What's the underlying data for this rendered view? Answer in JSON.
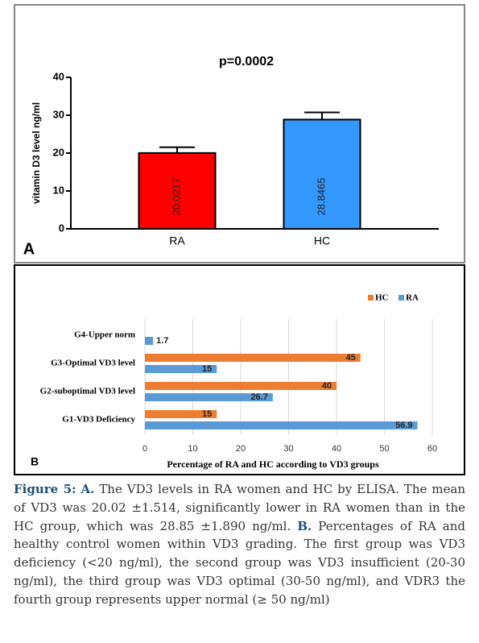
{
  "chart_data": [
    {
      "type": "bar",
      "title": "p=0.0002",
      "panel_label": "A",
      "ylabel": "vitamin D3 level ng/ml",
      "categories": [
        "RA",
        "HC"
      ],
      "values": [
        20.0217,
        28.8465
      ],
      "errors": [
        1.514,
        1.89
      ],
      "colors": [
        "#ff0000",
        "#3399ff"
      ],
      "ylim": [
        0,
        40
      ],
      "yticks": [
        0,
        10,
        20,
        30,
        40
      ]
    },
    {
      "type": "hbar",
      "panel_label": "B",
      "xlabel": "Percentage of RA and HC according to VD3 groups",
      "categories": [
        "G1-VD3 Deficiency",
        "G2-suboptimal VD3 level",
        "G3-Optimal VD3 level",
        "G4-Upper norm"
      ],
      "series": [
        {
          "name": "HC",
          "color": "#ed7d31",
          "values": [
            15,
            40,
            45,
            null
          ]
        },
        {
          "name": "RA",
          "color": "#5b9bd5",
          "values": [
            56.9,
            26.7,
            15,
            1.7
          ]
        }
      ],
      "xlim": [
        0,
        60
      ],
      "xticks": [
        0,
        10,
        20,
        30,
        40,
        50,
        60
      ],
      "grid": true,
      "legend": "top-right"
    }
  ],
  "caption": {
    "label": "Figure 5:",
    "parts": [
      {
        "marker": "A.",
        "text": " The VD3 levels in RA women and HC by ELISA. The mean of VD3 was 20.02 ±1.514, significantly lower in RA women than in the HC group, which was 28.85 ±1.890 ng/ml. "
      },
      {
        "marker": "B.",
        "text": " Percentages of RA and healthy control women within VD3 grading. The first group was VD3 deficiency (<20 ng/ml), the second group was VD3 insufficient (20-30 ng/ml), the third group was VD3 optimal (30-50 ng/ml), and VDR3 the fourth group represents upper normal (≥ 50 ng/ml)"
      }
    ]
  }
}
